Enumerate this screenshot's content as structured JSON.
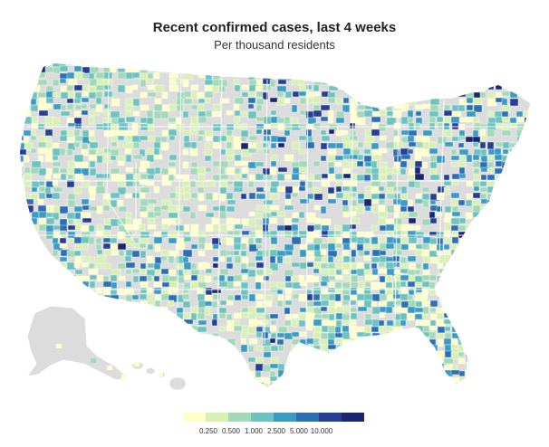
{
  "title": "Recent confirmed cases, last 4 weeks",
  "subtitle": "Per thousand residents",
  "colors": {
    "no_data": "#dcdcdc",
    "land_outline": "#ffffff",
    "scale": [
      "#ffffcc",
      "#d9f0b3",
      "#a3d9b9",
      "#6cc3c0",
      "#3a9bc5",
      "#2c6fb5",
      "#253f97",
      "#1a2574"
    ]
  },
  "legend": {
    "ticks": [
      "0.250",
      "0.500",
      "1.000",
      "2.500",
      "5.000",
      "10.000"
    ]
  },
  "map": {
    "name": "us-county-map",
    "regions": [
      "contiguous-us",
      "alaska",
      "hawaii"
    ]
  }
}
